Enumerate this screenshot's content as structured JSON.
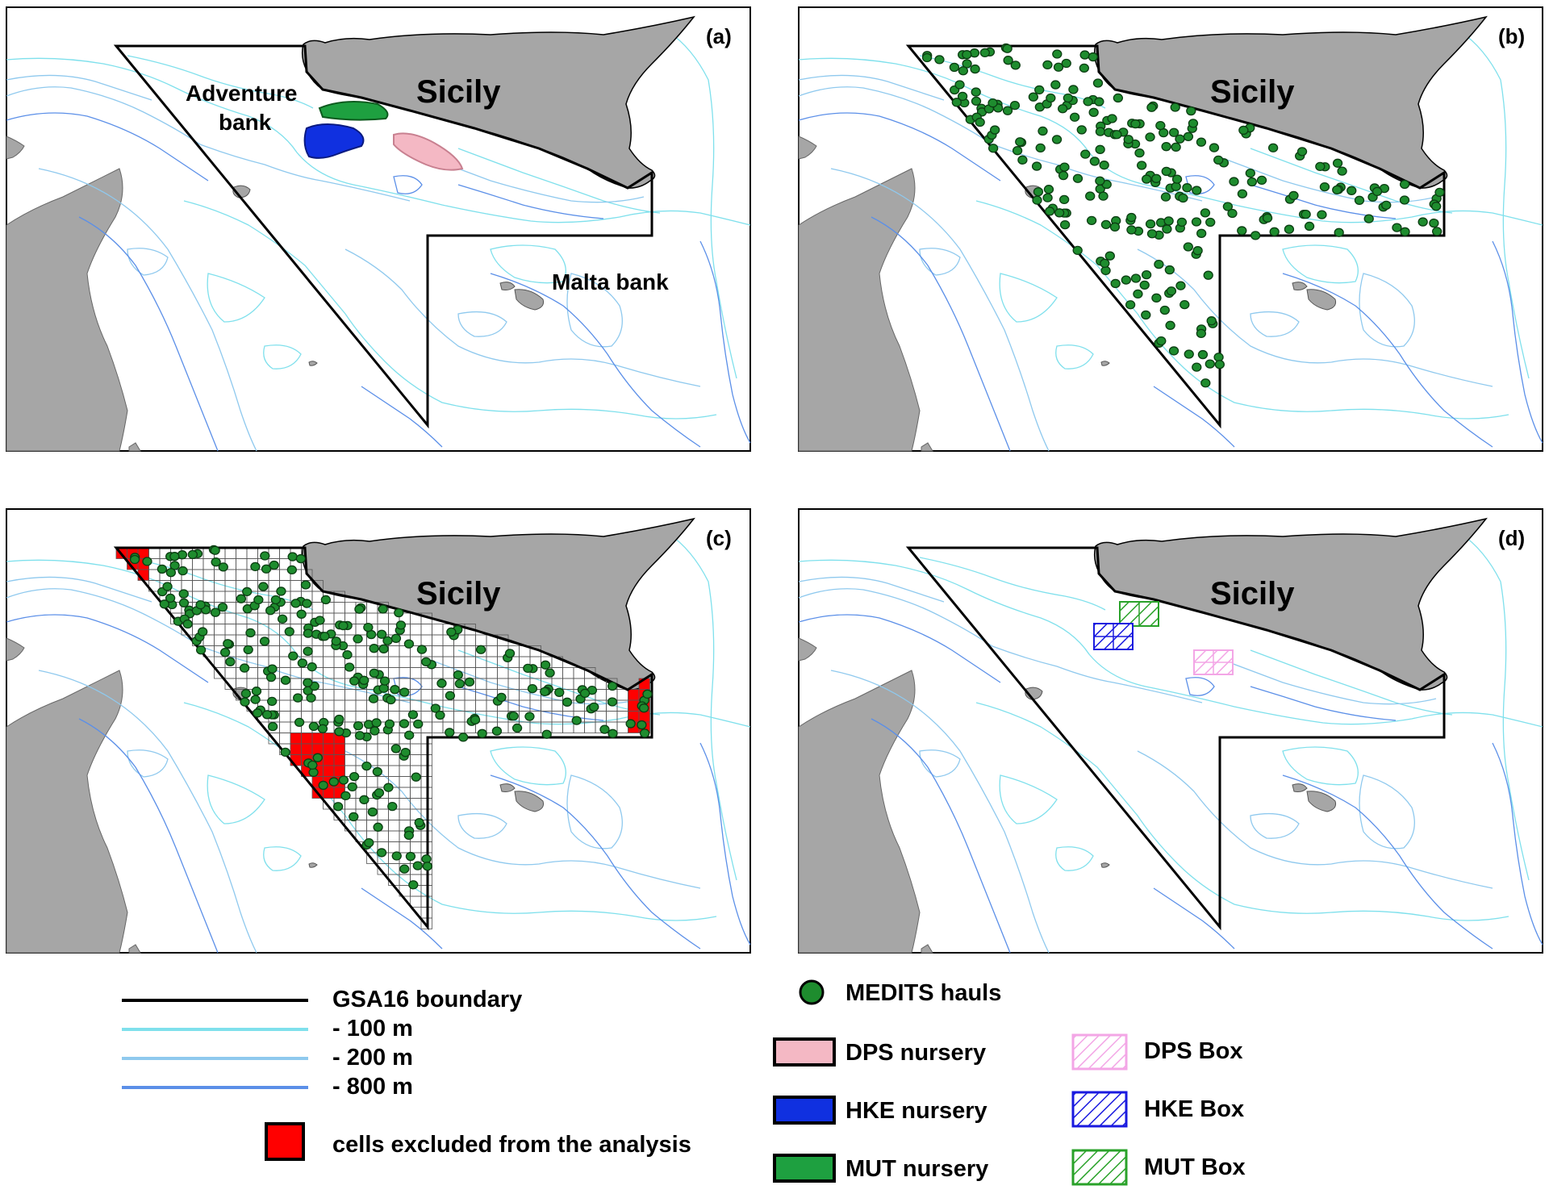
{
  "panels": [
    {
      "id": "a",
      "label": "(a)",
      "sicily": "Sicily",
      "places": {
        "adventure_line1": "Adventure",
        "adventure_line2": "bank",
        "malta": "Malta bank"
      }
    },
    {
      "id": "b",
      "label": "(b)",
      "sicily": "Sicily"
    },
    {
      "id": "c",
      "label": "(c)",
      "sicily": "Sicily"
    },
    {
      "id": "d",
      "label": "(d)",
      "sicily": "Sicily"
    }
  ],
  "legend": {
    "boundary": "GSA16 boundary",
    "d100": "- 100 m",
    "d200": "- 200 m",
    "d800": "- 800 m",
    "excluded": "cells excluded from the analysis",
    "medits": "MEDITS hauls",
    "dps_nursery": "DPS nursery",
    "hke_nursery": "HKE nursery",
    "mut_nursery": "MUT nursery",
    "dps_box": "DPS Box",
    "hke_box": "HKE Box",
    "mut_box": "MUT Box"
  },
  "colors": {
    "land": "#a6a6a6",
    "boundary": "#000000",
    "depth_100": "#7fe0ec",
    "depth_200": "#8fc9ee",
    "depth_800": "#5b8fe8",
    "hauls": "#1e8c2e",
    "dps": "#f4b8c4",
    "hke": "#1030e0",
    "mut": "#1ea040",
    "excluded": "#ff0000",
    "dps_box": "#f3a6e6",
    "hke_box": "#1a1adf",
    "mut_box": "#2aa22a"
  }
}
